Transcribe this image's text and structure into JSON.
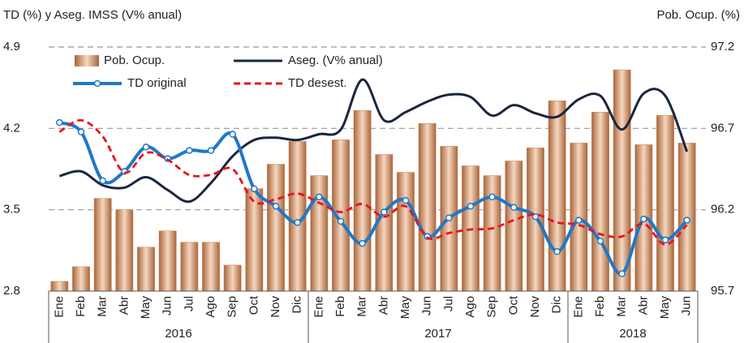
{
  "chart_data": {
    "type": "combo",
    "y_axis_title": "TD (%) y Aseg. IMSS (V% anual)",
    "y2_axis_title": "Pob. Ocup. (%)",
    "categories": [
      "Ene",
      "Feb",
      "Mar",
      "Abr",
      "May",
      "Jun",
      "Jul",
      "Ago",
      "Sep",
      "Oct",
      "Nov",
      "Dic",
      "Ene",
      "Feb",
      "Mar",
      "Abr",
      "May",
      "Jun",
      "Jul",
      "Ago",
      "Sep",
      "Oct",
      "Nov",
      "Dic",
      "Ene",
      "Feb",
      "Mar",
      "Abr",
      "May",
      "Jun"
    ],
    "years": [
      "2016",
      "2017",
      "2018"
    ],
    "ylim": [
      2.8,
      4.9
    ],
    "yticks": [
      2.8,
      3.5,
      4.2,
      4.9
    ],
    "y2lim": [
      95.7,
      97.2
    ],
    "y2ticks": [
      95.7,
      96.2,
      96.7,
      97.2
    ],
    "grid": true,
    "legend": "upper left",
    "series": [
      {
        "name": "Pob. Ocup.",
        "type": "bar",
        "axis": "y2",
        "color": "#c8875a",
        "values": [
          95.76,
          95.85,
          96.27,
          96.2,
          95.97,
          96.07,
          96.0,
          96.0,
          95.86,
          96.33,
          96.48,
          96.62,
          96.41,
          96.63,
          96.81,
          96.54,
          96.43,
          96.73,
          96.59,
          96.47,
          96.41,
          96.5,
          96.58,
          96.87,
          96.61,
          96.8,
          97.06,
          96.6,
          96.78,
          96.61
        ]
      },
      {
        "name": "Aseg. (V% anual)",
        "type": "line",
        "color": "#1a2540",
        "values": [
          3.79,
          3.83,
          3.71,
          3.69,
          3.78,
          3.67,
          3.57,
          3.73,
          3.96,
          4.1,
          4.12,
          4.1,
          4.15,
          4.19,
          4.62,
          4.27,
          4.34,
          4.43,
          4.49,
          4.47,
          4.31,
          4.4,
          4.33,
          4.3,
          4.45,
          4.48,
          4.19,
          4.5,
          4.48,
          4.0
        ]
      },
      {
        "name": "TD original",
        "type": "line",
        "color": "#1f78c8",
        "markers": true,
        "values": [
          4.25,
          4.17,
          3.75,
          3.83,
          4.04,
          3.94,
          4.01,
          4.01,
          4.15,
          3.68,
          3.53,
          3.39,
          3.61,
          3.4,
          3.21,
          3.48,
          3.58,
          3.27,
          3.43,
          3.53,
          3.61,
          3.52,
          3.44,
          3.14,
          3.41,
          3.23,
          2.95,
          3.42,
          3.24,
          3.41
        ]
      },
      {
        "name": "TD desest.",
        "type": "line",
        "color": "#e8141b",
        "dashed": true,
        "values": [
          4.17,
          4.27,
          4.13,
          3.82,
          3.99,
          3.93,
          3.8,
          3.8,
          3.85,
          3.57,
          3.59,
          3.64,
          3.56,
          3.48,
          3.55,
          3.44,
          3.53,
          3.26,
          3.3,
          3.33,
          3.34,
          3.41,
          3.46,
          3.39,
          3.37,
          3.29,
          3.27,
          3.38,
          3.2,
          3.37
        ]
      }
    ]
  }
}
